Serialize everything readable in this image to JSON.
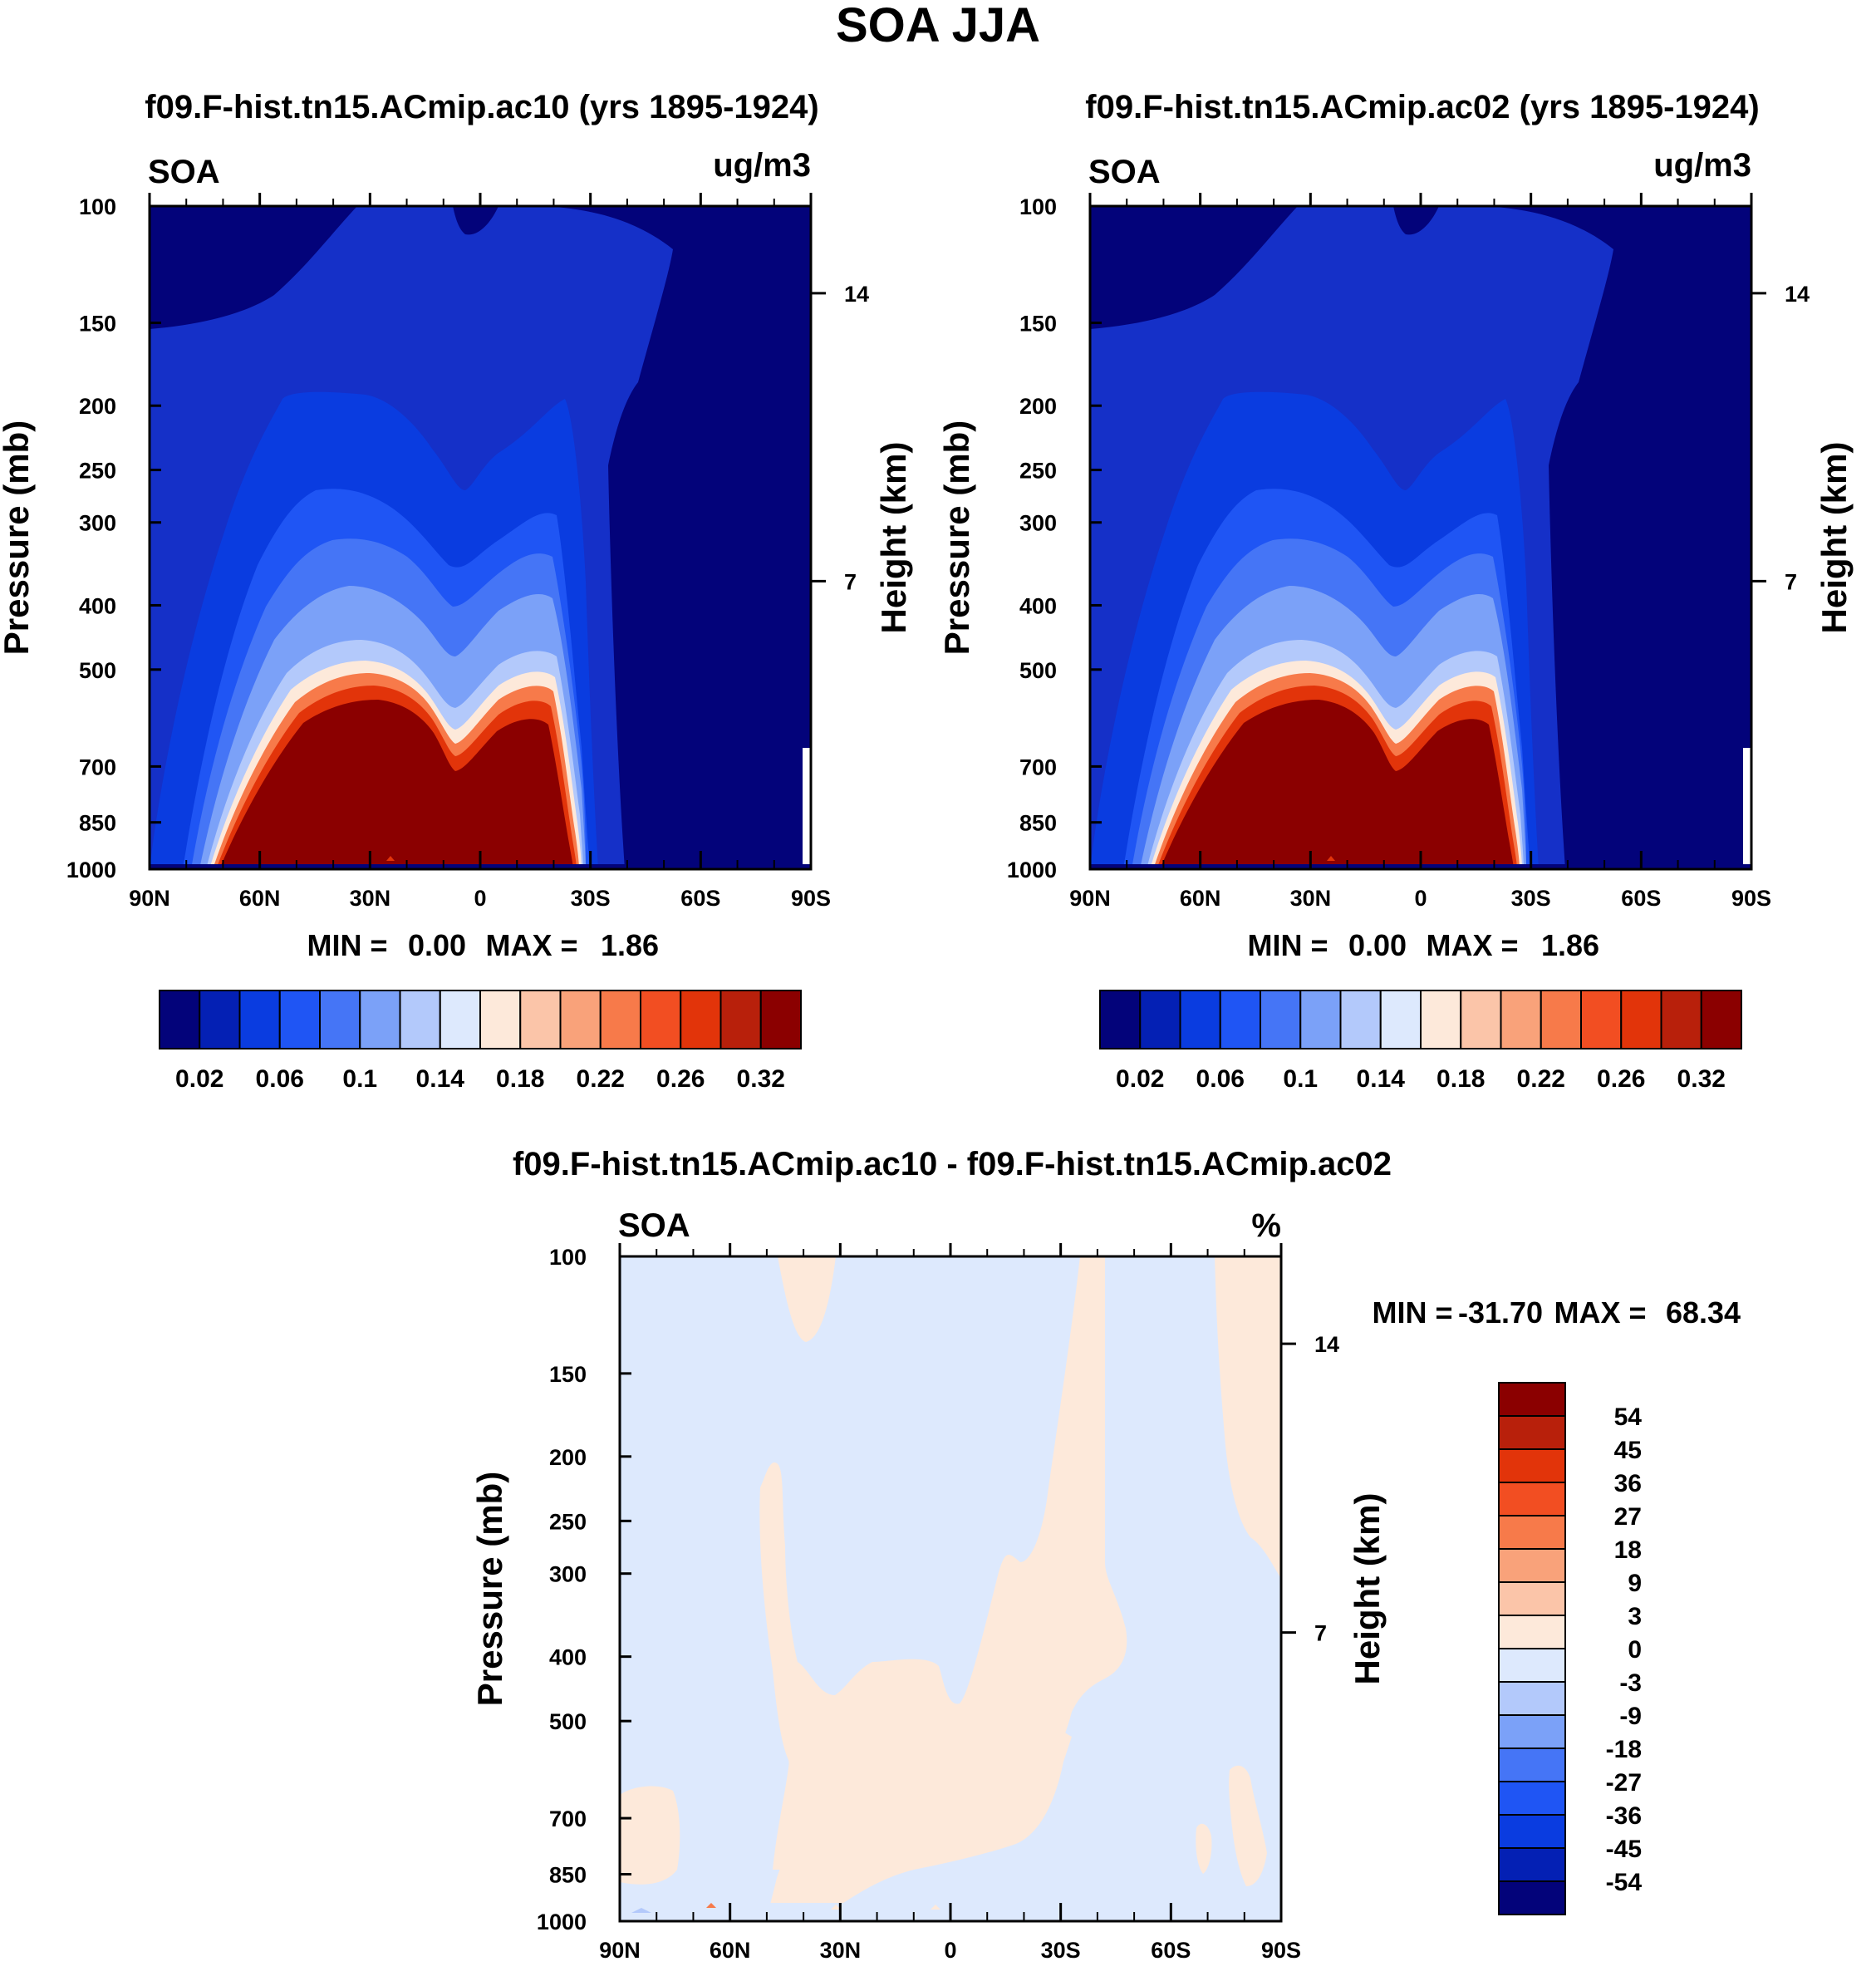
{
  "figure": {
    "title": "SOA JJA"
  },
  "chart_data": [
    {
      "type": "heatmap",
      "title": "f09.F-hist.tn15.ACmip.ac10 (yrs 1895-1924)",
      "variable": "SOA",
      "units": "ug/m3",
      "ylabel": "Pressure (mb)",
      "ylabel_right": "Height (km)",
      "x_ticks": [
        "90N",
        "60N",
        "30N",
        "0",
        "30S",
        "60S",
        "90S"
      ],
      "y_ticks": [
        100,
        150,
        200,
        250,
        300,
        400,
        500,
        700,
        850,
        1000
      ],
      "height_ticks": [
        14,
        7
      ],
      "min_label": "MIN =",
      "min_value": "0.00",
      "max_label": "MAX =",
      "max_value": "1.86",
      "colorbar_labels": [
        "0.02",
        "0.06",
        "0.1",
        "0.14",
        "0.18",
        "0.22",
        "0.26",
        "0.32"
      ],
      "colorbar_colors": [
        "#03037a",
        "#0420b4",
        "#0a3ce0",
        "#1f55f4",
        "#4575f6",
        "#7ba1f8",
        "#b3c9fb",
        "#dde9fd",
        "#fde9da",
        "#fbc5a9",
        "#f9a27a",
        "#f77a4a",
        "#f24e22",
        "#e2340a",
        "#b8200b",
        "#8b0000"
      ]
    },
    {
      "type": "heatmap",
      "title": "f09.F-hist.tn15.ACmip.ac02 (yrs 1895-1924)",
      "variable": "SOA",
      "units": "ug/m3",
      "ylabel": "Pressure (mb)",
      "ylabel_right": "Height (km)",
      "x_ticks": [
        "90N",
        "60N",
        "30N",
        "0",
        "30S",
        "60S",
        "90S"
      ],
      "y_ticks": [
        100,
        150,
        200,
        250,
        300,
        400,
        500,
        700,
        850,
        1000
      ],
      "height_ticks": [
        14,
        7
      ],
      "min_label": "MIN =",
      "min_value": "0.00",
      "max_label": "MAX =",
      "max_value": "1.86",
      "colorbar_labels": [
        "0.02",
        "0.06",
        "0.1",
        "0.14",
        "0.18",
        "0.22",
        "0.26",
        "0.32"
      ],
      "colorbar_colors": [
        "#03037a",
        "#0420b4",
        "#0a3ce0",
        "#1f55f4",
        "#4575f6",
        "#7ba1f8",
        "#b3c9fb",
        "#dde9fd",
        "#fde9da",
        "#fbc5a9",
        "#f9a27a",
        "#f77a4a",
        "#f24e22",
        "#e2340a",
        "#b8200b",
        "#8b0000"
      ]
    },
    {
      "type": "heatmap",
      "title": "f09.F-hist.tn15.ACmip.ac10 - f09.F-hist.tn15.ACmip.ac02",
      "variable": "SOA",
      "units": "%",
      "ylabel": "Pressure (mb)",
      "ylabel_right": "Height (km)",
      "x_ticks": [
        "90N",
        "60N",
        "30N",
        "0",
        "30S",
        "60S",
        "90S"
      ],
      "y_ticks": [
        100,
        150,
        200,
        250,
        300,
        400,
        500,
        700,
        850,
        1000
      ],
      "height_ticks": [
        14,
        7
      ],
      "min_label": "MIN =",
      "min_value": "-31.70",
      "max_label": "MAX =",
      "max_value": "68.34",
      "colorbar_labels": [
        "54",
        "45",
        "36",
        "27",
        "18",
        "9",
        "3",
        "0",
        "-3",
        "-9",
        "-18",
        "-27",
        "-36",
        "-45",
        "-54"
      ],
      "colorbar_colors": [
        "#8b0000",
        "#b8200b",
        "#e2340a",
        "#f24e22",
        "#f77a4a",
        "#f9a27a",
        "#fbc5a9",
        "#fde9da",
        "#dde9fd",
        "#b3c9fb",
        "#7ba1f8",
        "#4575f6",
        "#1f55f4",
        "#0a3ce0",
        "#0420b4",
        "#03037a"
      ]
    }
  ]
}
